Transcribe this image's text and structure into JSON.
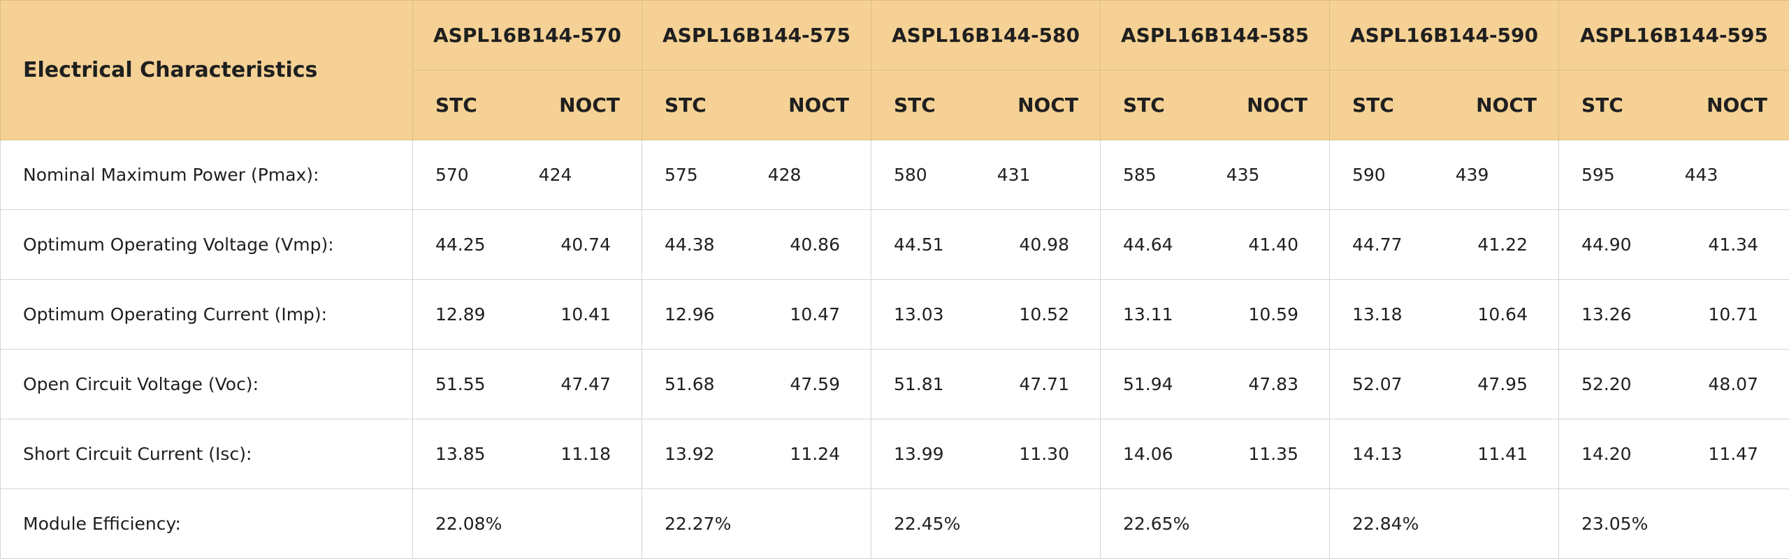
{
  "table": {
    "title": "Electrical Characteristics",
    "models": [
      {
        "name": "ASPL16B144-570",
        "stc_label": "STC",
        "noct_label": "NOCT"
      },
      {
        "name": "ASPL16B144-575",
        "stc_label": "STC",
        "noct_label": "NOCT"
      },
      {
        "name": "ASPL16B144-580",
        "stc_label": "STC",
        "noct_label": "NOCT"
      },
      {
        "name": "ASPL16B144-585",
        "stc_label": "STC",
        "noct_label": "NOCT"
      },
      {
        "name": "ASPL16B144-590",
        "stc_label": "STC",
        "noct_label": "NOCT"
      },
      {
        "name": "ASPL16B144-595",
        "stc_label": "STC",
        "noct_label": "NOCT"
      }
    ],
    "rows": [
      {
        "label": "Nominal Maximum Power (Pmax):",
        "values": [
          [
            "570",
            "424"
          ],
          [
            "575",
            "428"
          ],
          [
            "580",
            "431"
          ],
          [
            "585",
            "435"
          ],
          [
            "590",
            "439"
          ],
          [
            "595",
            "443"
          ]
        ]
      },
      {
        "label": "Optimum Operating Voltage (Vmp):",
        "values": [
          [
            "44.25",
            "40.74"
          ],
          [
            "44.38",
            "40.86"
          ],
          [
            "44.51",
            "40.98"
          ],
          [
            "44.64",
            "41.40"
          ],
          [
            "44.77",
            "41.22"
          ],
          [
            "44.90",
            "41.34"
          ]
        ]
      },
      {
        "label": "Optimum Operating Current (Imp):",
        "values": [
          [
            "12.89",
            "10.41"
          ],
          [
            "12.96",
            "10.47"
          ],
          [
            "13.03",
            "10.52"
          ],
          [
            "13.11",
            "10.59"
          ],
          [
            "13.18",
            "10.64"
          ],
          [
            "13.26",
            "10.71"
          ]
        ]
      },
      {
        "label": "Open Circuit Voltage (Voc):",
        "values": [
          [
            "51.55",
            "47.47"
          ],
          [
            "51.68",
            "47.59"
          ],
          [
            "51.81",
            "47.71"
          ],
          [
            "51.94",
            "47.83"
          ],
          [
            "52.07",
            "47.95"
          ],
          [
            "52.20",
            "48.07"
          ]
        ]
      },
      {
        "label": "Short Circuit Current (Isc):",
        "values": [
          [
            "13.85",
            "11.18"
          ],
          [
            "13.92",
            "11.24"
          ],
          [
            "13.99",
            "11.30"
          ],
          [
            "14.06",
            "11.35"
          ],
          [
            "14.13",
            "11.41"
          ],
          [
            "14.20",
            "11.47"
          ]
        ]
      },
      {
        "label": "Module Efficiency:",
        "values": [
          [
            "22.08%"
          ],
          [
            "22.27%"
          ],
          [
            "22.45%"
          ],
          [
            "22.65%"
          ],
          [
            "22.84%"
          ],
          [
            "23.05%"
          ]
        ]
      }
    ]
  },
  "colors": {
    "header_bg": "#f5d195",
    "grid": "#d4d4d4",
    "text": "#1f1f1f"
  }
}
